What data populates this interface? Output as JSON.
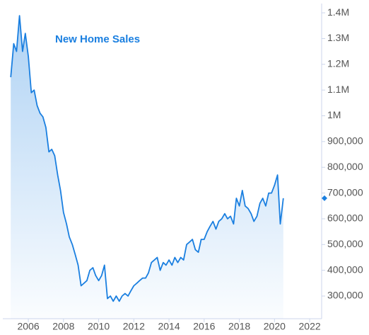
{
  "chart_data": {
    "type": "area",
    "title": "New Home Sales",
    "color": "#1a7fe0",
    "x": [
      2005.0,
      2005.17,
      2005.33,
      2005.5,
      2005.67,
      2005.83,
      2006.0,
      2006.17,
      2006.33,
      2006.5,
      2006.67,
      2006.83,
      2007.0,
      2007.17,
      2007.33,
      2007.5,
      2007.67,
      2007.83,
      2008.0,
      2008.17,
      2008.33,
      2008.5,
      2008.67,
      2008.83,
      2009.0,
      2009.17,
      2009.33,
      2009.5,
      2009.67,
      2009.83,
      2010.0,
      2010.17,
      2010.33,
      2010.5,
      2010.67,
      2010.83,
      2011.0,
      2011.17,
      2011.33,
      2011.5,
      2011.67,
      2011.83,
      2012.0,
      2012.17,
      2012.33,
      2012.5,
      2012.67,
      2012.83,
      2013.0,
      2013.17,
      2013.33,
      2013.5,
      2013.67,
      2013.83,
      2014.0,
      2014.17,
      2014.33,
      2014.5,
      2014.67,
      2014.83,
      2015.0,
      2015.17,
      2015.33,
      2015.5,
      2015.67,
      2015.83,
      2016.0,
      2016.17,
      2016.33,
      2016.5,
      2016.67,
      2016.83,
      2017.0,
      2017.17,
      2017.33,
      2017.5,
      2017.67,
      2017.83,
      2018.0,
      2018.17,
      2018.33,
      2018.5,
      2018.67,
      2018.83,
      2019.0,
      2019.17,
      2019.33,
      2019.5,
      2019.67,
      2019.83,
      2020.0,
      2020.17,
      2020.33,
      2020.5
    ],
    "values": [
      1150000,
      1280000,
      1250000,
      1389000,
      1250000,
      1320000,
      1230000,
      1090000,
      1100000,
      1040000,
      1010000,
      996000,
      955000,
      860000,
      870000,
      845000,
      770000,
      710000,
      625000,
      580000,
      530000,
      500000,
      460000,
      420000,
      340000,
      350000,
      360000,
      400000,
      410000,
      380000,
      360000,
      380000,
      420000,
      290000,
      300000,
      280000,
      300000,
      280000,
      300000,
      310000,
      300000,
      320000,
      340000,
      350000,
      360000,
      370000,
      370000,
      390000,
      430000,
      440000,
      450000,
      400000,
      430000,
      420000,
      440000,
      420000,
      450000,
      430000,
      450000,
      440000,
      500000,
      510000,
      520000,
      480000,
      470000,
      520000,
      520000,
      550000,
      570000,
      590000,
      560000,
      590000,
      600000,
      620000,
      600000,
      610000,
      580000,
      680000,
      650000,
      710000,
      650000,
      640000,
      620000,
      590000,
      610000,
      660000,
      680000,
      650000,
      700000,
      700000,
      730000,
      770000,
      580000,
      680000
    ],
    "xlim": [
      2004.55,
      2022.68
    ],
    "xticks": [
      2006,
      2008,
      2010,
      2012,
      2014,
      2016,
      2018,
      2020,
      2022
    ],
    "ylim": [
      212000,
      1436000
    ],
    "yticks": [
      {
        "value": 300000,
        "label": "300,000"
      },
      {
        "value": 400000,
        "label": "400,000"
      },
      {
        "value": 500000,
        "label": "500,000"
      },
      {
        "value": 600000,
        "label": "600,000"
      },
      {
        "value": 700000,
        "label": "700,000"
      },
      {
        "value": 800000,
        "label": "800,000"
      },
      {
        "value": 900000,
        "label": "900,000"
      },
      {
        "value": 1000000,
        "label": "1M"
      },
      {
        "value": 1100000,
        "label": "1.1M"
      },
      {
        "value": 1200000,
        "label": "1.2M"
      },
      {
        "value": 1300000,
        "label": "1.3M"
      },
      {
        "value": 1400000,
        "label": "1.4M"
      }
    ]
  }
}
